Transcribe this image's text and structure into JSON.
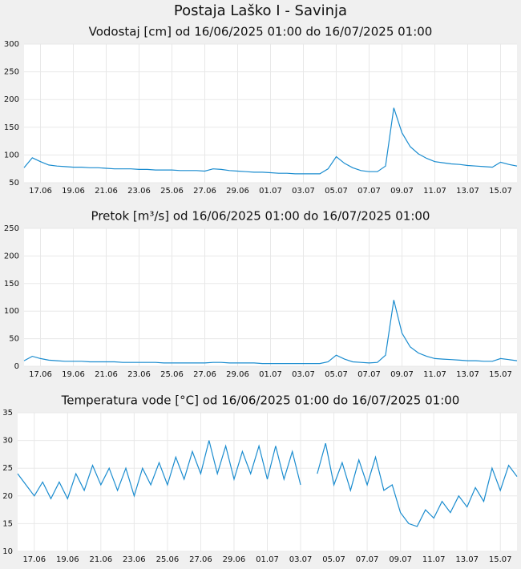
{
  "page_title": "Postaja Laško I - Savinja",
  "chart_data": [
    {
      "type": "line",
      "title": "Vodostaj [cm] od 16/06/2025 01:00 do 16/07/2025 01:00",
      "color": "#1a8ccf",
      "grid": true,
      "x": [
        0,
        0.5,
        1,
        1.5,
        2,
        2.5,
        3,
        3.5,
        4,
        4.5,
        5,
        5.5,
        6,
        6.5,
        7,
        7.5,
        8,
        8.5,
        9,
        9.5,
        10,
        10.5,
        11,
        11.5,
        12,
        12.5,
        13,
        13.5,
        14,
        14.5,
        15,
        15.5,
        16,
        16.5,
        17,
        17.5,
        18,
        18.5,
        19,
        19.5,
        20,
        20.5,
        21,
        21.5,
        22,
        22.5,
        23,
        23.5,
        24,
        24.5,
        25,
        25.5,
        26,
        26.5,
        27,
        27.5,
        28,
        28.5,
        29,
        29.5,
        30
      ],
      "values": [
        77,
        95,
        88,
        82,
        80,
        79,
        78,
        78,
        77,
        77,
        76,
        75,
        75,
        75,
        74,
        74,
        73,
        73,
        73,
        72,
        72,
        72,
        71,
        75,
        74,
        72,
        71,
        70,
        69,
        69,
        68,
        67,
        67,
        66,
        66,
        66,
        66,
        75,
        97,
        85,
        77,
        72,
        70,
        70,
        80,
        185,
        140,
        115,
        102,
        94,
        88,
        86,
        84,
        83,
        81,
        80,
        79,
        78,
        87,
        83,
        80
      ],
      "xlim": [
        0,
        30
      ],
      "ylim": [
        50,
        300
      ],
      "yticks": [
        50,
        100,
        150,
        200,
        250,
        300
      ],
      "xticks": [
        {
          "value": 1,
          "label": "17.06"
        },
        {
          "value": 3,
          "label": "19.06"
        },
        {
          "value": 5,
          "label": "21.06"
        },
        {
          "value": 7,
          "label": "23.06"
        },
        {
          "value": 9,
          "label": "25.06"
        },
        {
          "value": 11,
          "label": "27.06"
        },
        {
          "value": 13,
          "label": "29.06"
        },
        {
          "value": 15,
          "label": "01.07"
        },
        {
          "value": 17,
          "label": "03.07"
        },
        {
          "value": 19,
          "label": "05.07"
        },
        {
          "value": 21,
          "label": "07.07"
        },
        {
          "value": 23,
          "label": "09.07"
        },
        {
          "value": 25,
          "label": "11.07"
        },
        {
          "value": 27,
          "label": "13.07"
        },
        {
          "value": 29,
          "label": "15.07"
        }
      ]
    },
    {
      "type": "line",
      "title": "Pretok [m³/s] od 16/06/2025 01:00 do 16/07/2025 01:00",
      "color": "#1a8ccf",
      "grid": true,
      "x": [
        0,
        0.5,
        1,
        1.5,
        2,
        2.5,
        3,
        3.5,
        4,
        4.5,
        5,
        5.5,
        6,
        6.5,
        7,
        7.5,
        8,
        8.5,
        9,
        9.5,
        10,
        10.5,
        11,
        11.5,
        12,
        12.5,
        13,
        13.5,
        14,
        14.5,
        15,
        15.5,
        16,
        16.5,
        17,
        17.5,
        18,
        18.5,
        19,
        19.5,
        20,
        20.5,
        21,
        21.5,
        22,
        22.5,
        23,
        23.5,
        24,
        24.5,
        25,
        25.5,
        26,
        26.5,
        27,
        27.5,
        28,
        28.5,
        29,
        29.5,
        30
      ],
      "values": [
        10,
        18,
        14,
        11,
        10,
        9,
        9,
        9,
        8,
        8,
        8,
        8,
        7,
        7,
        7,
        7,
        7,
        6,
        6,
        6,
        6,
        6,
        6,
        7,
        7,
        6,
        6,
        6,
        6,
        5,
        5,
        5,
        5,
        5,
        5,
        5,
        5,
        8,
        20,
        13,
        8,
        7,
        6,
        7,
        20,
        120,
        60,
        35,
        24,
        18,
        14,
        13,
        12,
        11,
        10,
        10,
        9,
        9,
        14,
        12,
        10
      ],
      "xlim": [
        0,
        30
      ],
      "ylim": [
        0,
        250
      ],
      "yticks": [
        0,
        50,
        100,
        150,
        200,
        250
      ],
      "xticks": [
        {
          "value": 1,
          "label": "17.06"
        },
        {
          "value": 3,
          "label": "19.06"
        },
        {
          "value": 5,
          "label": "21.06"
        },
        {
          "value": 7,
          "label": "23.06"
        },
        {
          "value": 9,
          "label": "25.06"
        },
        {
          "value": 11,
          "label": "27.06"
        },
        {
          "value": 13,
          "label": "29.06"
        },
        {
          "value": 15,
          "label": "01.07"
        },
        {
          "value": 17,
          "label": "03.07"
        },
        {
          "value": 19,
          "label": "05.07"
        },
        {
          "value": 21,
          "label": "07.07"
        },
        {
          "value": 23,
          "label": "09.07"
        },
        {
          "value": 25,
          "label": "11.07"
        },
        {
          "value": 27,
          "label": "13.07"
        },
        {
          "value": 29,
          "label": "15.07"
        }
      ]
    },
    {
      "type": "line",
      "title": "Temperatura vode [°C] od 16/06/2025 01:00 do 16/07/2025 01:00",
      "color": "#1a8ccf",
      "grid": true,
      "x": [
        0,
        0.5,
        1,
        1.5,
        2,
        2.5,
        3,
        3.5,
        4,
        4.5,
        5,
        5.5,
        6,
        6.5,
        7,
        7.5,
        8,
        8.5,
        9,
        9.5,
        10,
        10.5,
        11,
        11.5,
        12,
        12.5,
        13,
        13.5,
        14,
        14.5,
        15,
        15.5,
        16,
        16.5,
        17,
        17.5,
        18,
        18.5,
        19,
        19.5,
        20,
        20.5,
        21,
        21.5,
        22,
        22.5,
        23,
        23.5,
        24,
        24.5,
        25,
        25.5,
        26,
        26.5,
        27,
        27.5,
        28,
        28.5,
        29,
        29.5,
        30
      ],
      "values": [
        24,
        22,
        20,
        22.5,
        19.5,
        22.5,
        19.5,
        24,
        21,
        25.5,
        22,
        25,
        21,
        25,
        20,
        25,
        22,
        26,
        22,
        27,
        23,
        28,
        24,
        30,
        24,
        29,
        23,
        28,
        24,
        29,
        23,
        29,
        23,
        28,
        22,
        null,
        24,
        29.5,
        22,
        26,
        21,
        26.5,
        22,
        27,
        21,
        22,
        17,
        15,
        14.5,
        17.5,
        16,
        19,
        17,
        20,
        18,
        21.5,
        19,
        25,
        21,
        25.5,
        23.5
      ],
      "xlim": [
        0,
        30
      ],
      "ylim": [
        10,
        35
      ],
      "yticks": [
        10,
        15,
        20,
        25,
        30,
        35
      ],
      "xticks": [
        {
          "value": 1,
          "label": "17.06"
        },
        {
          "value": 3,
          "label": "19.06"
        },
        {
          "value": 5,
          "label": "21.06"
        },
        {
          "value": 7,
          "label": "23.06"
        },
        {
          "value": 9,
          "label": "25.06"
        },
        {
          "value": 11,
          "label": "27.06"
        },
        {
          "value": 13,
          "label": "29.06"
        },
        {
          "value": 15,
          "label": "01.07"
        },
        {
          "value": 17,
          "label": "03.07"
        },
        {
          "value": 19,
          "label": "05.07"
        },
        {
          "value": 21,
          "label": "07.07"
        },
        {
          "value": 23,
          "label": "09.07"
        },
        {
          "value": 25,
          "label": "11.07"
        },
        {
          "value": 27,
          "label": "13.07"
        },
        {
          "value": 29,
          "label": "15.07"
        }
      ]
    }
  ]
}
